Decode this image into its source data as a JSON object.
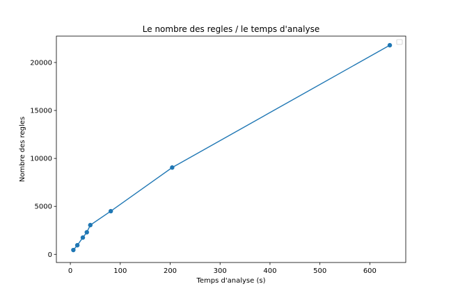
{
  "chart_data": {
    "type": "line",
    "title": "Le nombre des regles / le temps d'analyse",
    "xlabel": "Temps d'analyse (s)",
    "ylabel": "Nombre des regles",
    "xlim": [
      -28,
      672
    ],
    "ylim": [
      -850,
      22750
    ],
    "xticks": [
      0,
      100,
      200,
      300,
      400,
      500,
      600
    ],
    "yticks": [
      0,
      5000,
      10000,
      15000,
      20000
    ],
    "grid": false,
    "legend": "top-right",
    "series": [
      {
        "x": [
          6,
          14,
          25,
          33,
          40,
          81,
          204,
          640
        ],
        "y": [
          450,
          950,
          1750,
          2300,
          3050,
          4500,
          9050,
          21800
        ],
        "color": "#1f77b4",
        "marker": "circle"
      }
    ]
  }
}
